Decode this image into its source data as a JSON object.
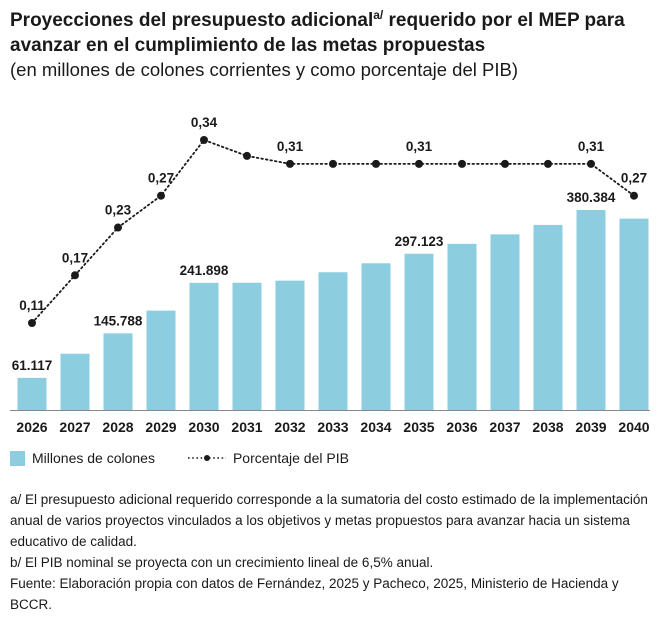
{
  "header": {
    "title_part1": "Proyecciones del presupuesto adicional",
    "title_sup": "a/",
    "title_part2": " requerido por el MEP para avanzar en el cumplimiento de las metas propuestas",
    "subtitle": "(en millones de colones corrientes y como porcentaje del PIB)"
  },
  "chart_data": {
    "type": "bar",
    "categories": [
      "2026",
      "2027",
      "2028",
      "2029",
      "2030",
      "2031",
      "2032",
      "2033",
      "2034",
      "2035",
      "2036",
      "2037",
      "2038",
      "2039",
      "2040"
    ],
    "series": [
      {
        "name": "Millones de colones",
        "chart": "bar",
        "values": [
          61117,
          107000,
          145788,
          189000,
          241898,
          242000,
          246000,
          262000,
          279000,
          297123,
          316000,
          334000,
          352000,
          380384,
          364000
        ],
        "labels": [
          "61.117",
          "",
          "145.788",
          "",
          "241.898",
          "",
          "",
          "",
          "",
          "297.123",
          "",
          "",
          "",
          "380.384",
          ""
        ]
      },
      {
        "name": "Porcentaje del PIB",
        "chart": "line",
        "values": [
          0.11,
          0.17,
          0.23,
          0.27,
          0.34,
          0.32,
          0.31,
          0.31,
          0.31,
          0.31,
          0.31,
          0.31,
          0.31,
          0.31,
          0.27
        ],
        "labels": [
          "0,11",
          "0,17",
          "0,23",
          "0,27",
          "0,34",
          "",
          "0,31",
          "",
          "",
          "0,31",
          "",
          "",
          "",
          "0,31",
          "0,27"
        ]
      }
    ],
    "colors": {
      "bar": "#8ccde0",
      "line": "#1a1a1a",
      "axis": "#888888"
    }
  },
  "legend": {
    "bars": "Millones de colones",
    "line": "Porcentaje del PIB"
  },
  "notes": {
    "a": "a/ El presupuesto adicional requerido corresponde a la sumatoria del costo estimado de la implementación anual de varios proyectos vinculados a los objetivos y metas propuestos para avanzar hacia un sistema educativo de calidad.",
    "b": "b/ El PIB nominal se proyecta con un crecimiento lineal de 6,5% anual.",
    "source": "Fuente: Elaboración propia con datos de Fernández, 2025 y Pacheco, 2025, Ministerio de Hacienda y BCCR."
  }
}
